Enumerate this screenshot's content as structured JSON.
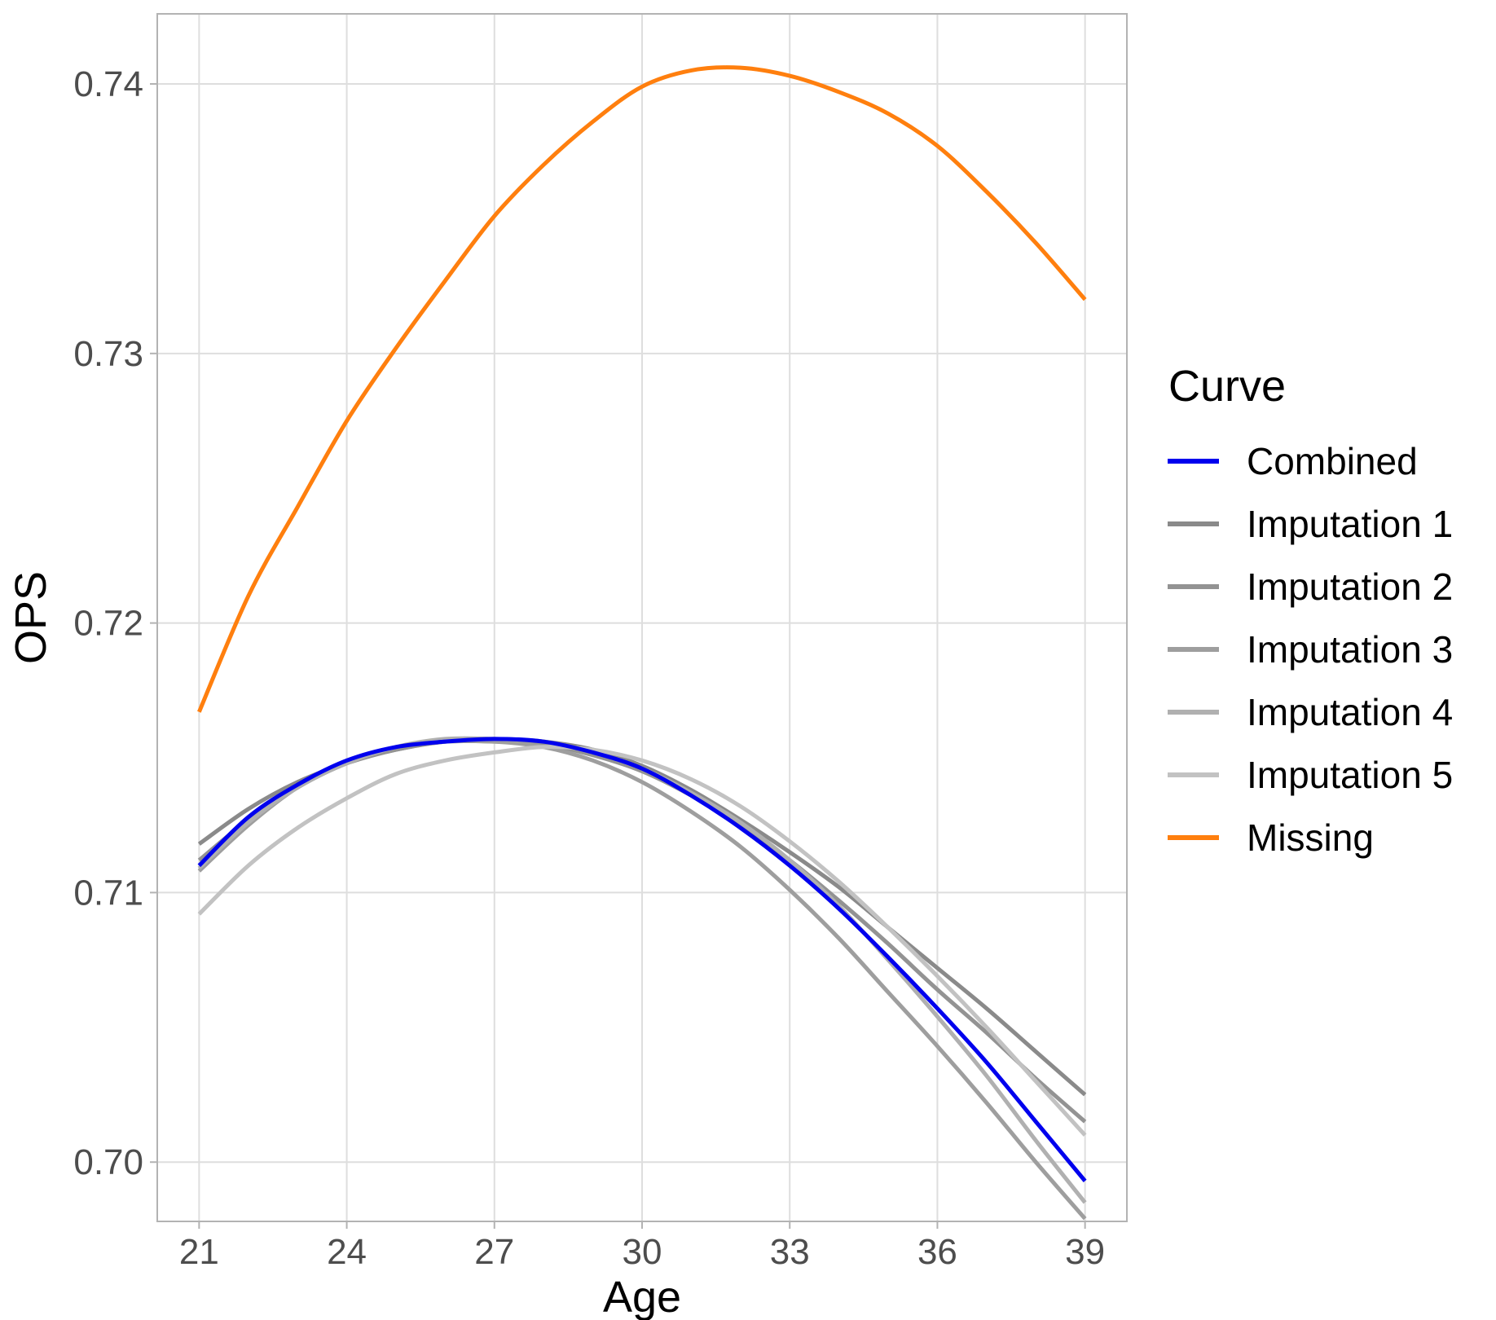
{
  "chart_data": {
    "type": "line",
    "title": "",
    "xlabel": "Age",
    "ylabel": "OPS",
    "xlim": [
      20.15,
      39.85
    ],
    "ylim": [
      0.6978,
      0.7426
    ],
    "x_ticks": [
      21,
      24,
      27,
      30,
      33,
      36,
      39
    ],
    "x_tick_labels": [
      "21",
      "24",
      "27",
      "30",
      "33",
      "36",
      "39"
    ],
    "y_ticks": [
      0.7,
      0.71,
      0.72,
      0.73,
      0.74
    ],
    "y_tick_labels": [
      "0.70",
      "0.71",
      "0.72",
      "0.73",
      "0.74"
    ],
    "grid": true,
    "legend": {
      "title": "Curve",
      "position": "right"
    },
    "x": [
      21,
      22,
      23,
      24,
      25,
      26,
      27,
      28,
      29,
      30,
      31,
      32,
      33,
      34,
      35,
      36,
      37,
      38,
      39
    ],
    "series": [
      {
        "name": "Imputation 1",
        "color": "#8a8a8a",
        "values": [
          0.7118,
          0.7131,
          0.7141,
          0.7148,
          0.7153,
          0.7156,
          0.7157,
          0.7156,
          0.7153,
          0.7147,
          0.7138,
          0.7127,
          0.7115,
          0.7102,
          0.7087,
          0.7072,
          0.7057,
          0.7041,
          0.7025
        ]
      },
      {
        "name": "Imputation 2",
        "color": "#939393",
        "values": [
          0.7112,
          0.7127,
          0.7139,
          0.7148,
          0.7153,
          0.7156,
          0.7156,
          0.7155,
          0.7151,
          0.7145,
          0.7136,
          0.7125,
          0.7112,
          0.7097,
          0.7081,
          0.7064,
          0.7048,
          0.7031,
          0.7015
        ]
      },
      {
        "name": "Imputation 3",
        "color": "#9e9e9e",
        "values": [
          0.7108,
          0.7125,
          0.7139,
          0.7148,
          0.7154,
          0.7156,
          0.7156,
          0.7154,
          0.7149,
          0.7141,
          0.713,
          0.7117,
          0.7101,
          0.7083,
          0.7063,
          0.7043,
          0.7022,
          0.7,
          0.6979
        ]
      },
      {
        "name": "Imputation 4",
        "color": "#b0b0b0",
        "values": [
          0.7109,
          0.7126,
          0.7139,
          0.7148,
          0.7154,
          0.7157,
          0.7157,
          0.7156,
          0.7152,
          0.7146,
          0.7137,
          0.7126,
          0.7112,
          0.7095,
          0.7075,
          0.7054,
          0.7032,
          0.7008,
          0.6985
        ]
      },
      {
        "name": "Imputation 5",
        "color": "#c2c2c2",
        "values": [
          0.7092,
          0.711,
          0.7124,
          0.7135,
          0.7144,
          0.7149,
          0.7152,
          0.7154,
          0.7153,
          0.7149,
          0.7142,
          0.7132,
          0.7119,
          0.7104,
          0.7087,
          0.7069,
          0.705,
          0.703,
          0.701
        ]
      },
      {
        "name": "Combined",
        "color": "#0000ee",
        "values": [
          0.711,
          0.7128,
          0.714,
          0.7149,
          0.7154,
          0.7156,
          0.7157,
          0.7156,
          0.7152,
          0.7146,
          0.7136,
          0.7124,
          0.711,
          0.7094,
          0.7076,
          0.7057,
          0.7037,
          0.7015,
          0.6993
        ]
      },
      {
        "name": "Missing",
        "color": "#ff7f0e",
        "values": [
          0.7167,
          0.721,
          0.7243,
          0.7275,
          0.7302,
          0.7327,
          0.7351,
          0.737,
          0.7386,
          0.7399,
          0.7405,
          0.7406,
          0.7403,
          0.7397,
          0.7389,
          0.7377,
          0.736,
          0.7341,
          0.732
        ]
      }
    ],
    "legend_order": [
      "Combined",
      "Imputation 1",
      "Imputation 2",
      "Imputation 3",
      "Imputation 4",
      "Imputation 5",
      "Missing"
    ]
  }
}
